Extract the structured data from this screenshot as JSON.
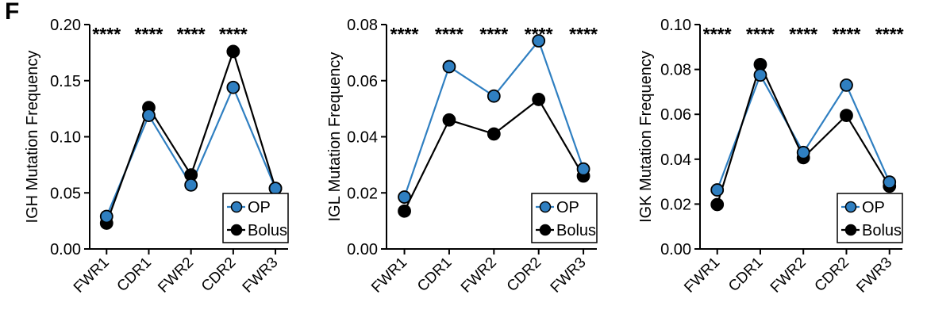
{
  "panel_label": "F",
  "colors": {
    "op": "#2f7fc1",
    "bolus": "#000000",
    "axis": "#000000"
  },
  "chart_data": [
    {
      "type": "line",
      "categories": [
        "FWR1",
        "CDR1",
        "FWR2",
        "CDR2",
        "FWR3"
      ],
      "ylabel": "IGH Mutation Frequency",
      "ylim": [
        0,
        0.2
      ],
      "yticks": [
        "0.00",
        "0.05",
        "0.10",
        "0.15",
        "0.20"
      ],
      "ytick_values": [
        0,
        0.05,
        0.1,
        0.15,
        0.2
      ],
      "significance": [
        "****",
        "****",
        "****",
        "****",
        ""
      ],
      "legend_position": "bottom-right",
      "series": [
        {
          "name": "OP",
          "values": [
            0.029,
            0.119,
            0.057,
            0.144,
            0.054
          ]
        },
        {
          "name": "Bolus",
          "values": [
            0.023,
            0.126,
            0.066,
            0.176,
            0.054
          ]
        }
      ]
    },
    {
      "type": "line",
      "categories": [
        "FWR1",
        "CDR1",
        "FWR2",
        "CDR2",
        "FWR3"
      ],
      "ylabel": "IGL Mutation Frequency",
      "ylim": [
        0,
        0.08
      ],
      "yticks": [
        "0.00",
        "0.02",
        "0.04",
        "0.06",
        "0.08"
      ],
      "ytick_values": [
        0,
        0.02,
        0.04,
        0.06,
        0.08
      ],
      "significance": [
        "****",
        "****",
        "****",
        "****",
        "****"
      ],
      "legend_position": "bottom-right",
      "series": [
        {
          "name": "OP",
          "values": [
            0.0185,
            0.065,
            0.0545,
            0.0742,
            0.0285
          ]
        },
        {
          "name": "Bolus",
          "values": [
            0.0135,
            0.046,
            0.041,
            0.0533,
            0.026
          ]
        }
      ]
    },
    {
      "type": "line",
      "categories": [
        "FWR1",
        "CDR1",
        "FWR2",
        "CDR2",
        "FWR3"
      ],
      "ylabel": "IGK Mutation Frequency",
      "ylim": [
        0,
        0.1
      ],
      "yticks": [
        "0.00",
        "0.02",
        "0.04",
        "0.06",
        "0.08",
        "0.10"
      ],
      "ytick_values": [
        0,
        0.02,
        0.04,
        0.06,
        0.08,
        0.1
      ],
      "significance": [
        "****",
        "****",
        "****",
        "****",
        "****"
      ],
      "legend_position": "bottom-right",
      "series": [
        {
          "name": "OP",
          "values": [
            0.0263,
            0.0775,
            0.043,
            0.073,
            0.0298
          ]
        },
        {
          "name": "Bolus",
          "values": [
            0.0198,
            0.0822,
            0.0407,
            0.0595,
            0.028
          ]
        }
      ]
    }
  ]
}
